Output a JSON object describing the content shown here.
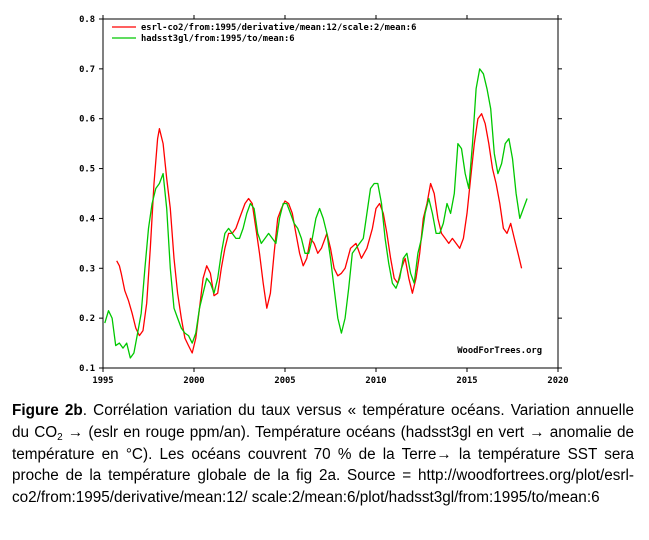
{
  "chart_data": {
    "type": "line",
    "title": "",
    "xlabel": "",
    "ylabel": "",
    "xlim": [
      1995,
      2020
    ],
    "ylim": [
      0.1,
      0.8
    ],
    "xticks": [
      1995,
      2000,
      2005,
      2010,
      2015,
      2020
    ],
    "yticks": [
      0.1,
      0.2,
      0.3,
      0.4,
      0.5,
      0.6,
      0.7,
      0.8
    ],
    "grid": false,
    "legend_position": "top-left",
    "watermark": "WoodForTrees.org",
    "series": [
      {
        "name": "esrl-co2/from:1995/derivative/mean:12/scale:2/mean:6",
        "color": "#ff0000",
        "points": [
          [
            1995.75,
            0.315
          ],
          [
            1995.9,
            0.305
          ],
          [
            1996.0,
            0.29
          ],
          [
            1996.2,
            0.255
          ],
          [
            1996.4,
            0.235
          ],
          [
            1996.6,
            0.21
          ],
          [
            1996.8,
            0.18
          ],
          [
            1997.0,
            0.165
          ],
          [
            1997.2,
            0.175
          ],
          [
            1997.4,
            0.23
          ],
          [
            1997.6,
            0.34
          ],
          [
            1997.8,
            0.47
          ],
          [
            1998.0,
            0.56
          ],
          [
            1998.1,
            0.58
          ],
          [
            1998.3,
            0.55
          ],
          [
            1998.5,
            0.48
          ],
          [
            1998.7,
            0.42
          ],
          [
            1998.9,
            0.32
          ],
          [
            1999.1,
            0.25
          ],
          [
            1999.3,
            0.2
          ],
          [
            1999.5,
            0.16
          ],
          [
            1999.7,
            0.145
          ],
          [
            1999.9,
            0.13
          ],
          [
            2000.1,
            0.16
          ],
          [
            2000.3,
            0.22
          ],
          [
            2000.5,
            0.28
          ],
          [
            2000.7,
            0.305
          ],
          [
            2000.9,
            0.29
          ],
          [
            2001.1,
            0.245
          ],
          [
            2001.3,
            0.25
          ],
          [
            2001.5,
            0.3
          ],
          [
            2001.7,
            0.34
          ],
          [
            2001.9,
            0.37
          ],
          [
            2002.1,
            0.37
          ],
          [
            2002.3,
            0.38
          ],
          [
            2002.5,
            0.4
          ],
          [
            2002.8,
            0.43
          ],
          [
            2003.0,
            0.44
          ],
          [
            2003.2,
            0.43
          ],
          [
            2003.4,
            0.38
          ],
          [
            2003.6,
            0.33
          ],
          [
            2003.8,
            0.27
          ],
          [
            2004.0,
            0.22
          ],
          [
            2004.2,
            0.25
          ],
          [
            2004.4,
            0.33
          ],
          [
            2004.6,
            0.4
          ],
          [
            2004.8,
            0.42
          ],
          [
            2005.0,
            0.435
          ],
          [
            2005.2,
            0.43
          ],
          [
            2005.4,
            0.41
          ],
          [
            2005.6,
            0.37
          ],
          [
            2005.8,
            0.33
          ],
          [
            2006.0,
            0.305
          ],
          [
            2006.2,
            0.32
          ],
          [
            2006.4,
            0.36
          ],
          [
            2006.6,
            0.35
          ],
          [
            2006.8,
            0.33
          ],
          [
            2007.0,
            0.34
          ],
          [
            2007.3,
            0.37
          ],
          [
            2007.5,
            0.34
          ],
          [
            2007.7,
            0.3
          ],
          [
            2007.9,
            0.285
          ],
          [
            2008.1,
            0.29
          ],
          [
            2008.3,
            0.3
          ],
          [
            2008.6,
            0.34
          ],
          [
            2008.9,
            0.35
          ],
          [
            2009.2,
            0.32
          ],
          [
            2009.5,
            0.34
          ],
          [
            2009.8,
            0.38
          ],
          [
            2010.0,
            0.42
          ],
          [
            2010.2,
            0.43
          ],
          [
            2010.4,
            0.41
          ],
          [
            2010.6,
            0.37
          ],
          [
            2010.8,
            0.32
          ],
          [
            2011.0,
            0.28
          ],
          [
            2011.2,
            0.27
          ],
          [
            2011.4,
            0.3
          ],
          [
            2011.6,
            0.32
          ],
          [
            2011.8,
            0.28
          ],
          [
            2012.0,
            0.25
          ],
          [
            2012.2,
            0.28
          ],
          [
            2012.4,
            0.33
          ],
          [
            2012.6,
            0.4
          ],
          [
            2012.8,
            0.43
          ],
          [
            2013.0,
            0.47
          ],
          [
            2013.2,
            0.45
          ],
          [
            2013.4,
            0.4
          ],
          [
            2013.6,
            0.37
          ],
          [
            2013.8,
            0.36
          ],
          [
            2014.0,
            0.35
          ],
          [
            2014.2,
            0.36
          ],
          [
            2014.4,
            0.35
          ],
          [
            2014.6,
            0.34
          ],
          [
            2014.8,
            0.36
          ],
          [
            2015.0,
            0.41
          ],
          [
            2015.2,
            0.48
          ],
          [
            2015.4,
            0.55
          ],
          [
            2015.6,
            0.6
          ],
          [
            2015.8,
            0.61
          ],
          [
            2016.0,
            0.59
          ],
          [
            2016.2,
            0.55
          ],
          [
            2016.4,
            0.5
          ],
          [
            2016.6,
            0.47
          ],
          [
            2016.8,
            0.43
          ],
          [
            2017.0,
            0.38
          ],
          [
            2017.2,
            0.37
          ],
          [
            2017.4,
            0.39
          ],
          [
            2017.6,
            0.36
          ],
          [
            2017.8,
            0.33
          ],
          [
            2018.0,
            0.3
          ]
        ]
      },
      {
        "name": "hadsst3gl/from:1995/to/mean:6",
        "color": "#00c800",
        "points": [
          [
            1995.1,
            0.19
          ],
          [
            1995.3,
            0.215
          ],
          [
            1995.5,
            0.2
          ],
          [
            1995.7,
            0.145
          ],
          [
            1995.9,
            0.15
          ],
          [
            1996.1,
            0.14
          ],
          [
            1996.3,
            0.15
          ],
          [
            1996.5,
            0.12
          ],
          [
            1996.7,
            0.13
          ],
          [
            1996.9,
            0.17
          ],
          [
            1997.1,
            0.21
          ],
          [
            1997.3,
            0.3
          ],
          [
            1997.5,
            0.38
          ],
          [
            1997.7,
            0.43
          ],
          [
            1997.9,
            0.46
          ],
          [
            1998.1,
            0.47
          ],
          [
            1998.3,
            0.49
          ],
          [
            1998.5,
            0.42
          ],
          [
            1998.7,
            0.3
          ],
          [
            1998.9,
            0.22
          ],
          [
            1999.1,
            0.2
          ],
          [
            1999.3,
            0.18
          ],
          [
            1999.5,
            0.17
          ],
          [
            1999.7,
            0.165
          ],
          [
            1999.9,
            0.15
          ],
          [
            2000.1,
            0.17
          ],
          [
            2000.3,
            0.22
          ],
          [
            2000.5,
            0.25
          ],
          [
            2000.7,
            0.28
          ],
          [
            2000.9,
            0.27
          ],
          [
            2001.1,
            0.25
          ],
          [
            2001.3,
            0.28
          ],
          [
            2001.5,
            0.33
          ],
          [
            2001.7,
            0.37
          ],
          [
            2001.9,
            0.38
          ],
          [
            2002.1,
            0.37
          ],
          [
            2002.3,
            0.36
          ],
          [
            2002.5,
            0.36
          ],
          [
            2002.7,
            0.38
          ],
          [
            2002.9,
            0.41
          ],
          [
            2003.1,
            0.43
          ],
          [
            2003.3,
            0.42
          ],
          [
            2003.5,
            0.37
          ],
          [
            2003.7,
            0.35
          ],
          [
            2003.9,
            0.36
          ],
          [
            2004.1,
            0.37
          ],
          [
            2004.3,
            0.36
          ],
          [
            2004.5,
            0.35
          ],
          [
            2004.7,
            0.4
          ],
          [
            2004.9,
            0.43
          ],
          [
            2005.1,
            0.43
          ],
          [
            2005.3,
            0.41
          ],
          [
            2005.5,
            0.39
          ],
          [
            2005.7,
            0.38
          ],
          [
            2005.9,
            0.36
          ],
          [
            2006.1,
            0.33
          ],
          [
            2006.3,
            0.33
          ],
          [
            2006.5,
            0.36
          ],
          [
            2006.7,
            0.4
          ],
          [
            2006.9,
            0.42
          ],
          [
            2007.1,
            0.4
          ],
          [
            2007.3,
            0.37
          ],
          [
            2007.5,
            0.32
          ],
          [
            2007.7,
            0.26
          ],
          [
            2007.9,
            0.2
          ],
          [
            2008.1,
            0.17
          ],
          [
            2008.3,
            0.2
          ],
          [
            2008.5,
            0.26
          ],
          [
            2008.7,
            0.33
          ],
          [
            2008.9,
            0.34
          ],
          [
            2009.1,
            0.35
          ],
          [
            2009.3,
            0.36
          ],
          [
            2009.5,
            0.41
          ],
          [
            2009.7,
            0.46
          ],
          [
            2009.9,
            0.47
          ],
          [
            2010.1,
            0.47
          ],
          [
            2010.3,
            0.43
          ],
          [
            2010.5,
            0.36
          ],
          [
            2010.7,
            0.31
          ],
          [
            2010.9,
            0.27
          ],
          [
            2011.1,
            0.26
          ],
          [
            2011.3,
            0.28
          ],
          [
            2011.5,
            0.32
          ],
          [
            2011.7,
            0.33
          ],
          [
            2011.9,
            0.29
          ],
          [
            2012.1,
            0.27
          ],
          [
            2012.3,
            0.33
          ],
          [
            2012.5,
            0.36
          ],
          [
            2012.7,
            0.41
          ],
          [
            2012.9,
            0.44
          ],
          [
            2013.1,
            0.41
          ],
          [
            2013.3,
            0.37
          ],
          [
            2013.5,
            0.37
          ],
          [
            2013.7,
            0.39
          ],
          [
            2013.9,
            0.43
          ],
          [
            2014.1,
            0.41
          ],
          [
            2014.3,
            0.45
          ],
          [
            2014.5,
            0.55
          ],
          [
            2014.7,
            0.54
          ],
          [
            2014.9,
            0.49
          ],
          [
            2015.1,
            0.46
          ],
          [
            2015.3,
            0.55
          ],
          [
            2015.5,
            0.66
          ],
          [
            2015.7,
            0.7
          ],
          [
            2015.9,
            0.69
          ],
          [
            2016.1,
            0.66
          ],
          [
            2016.3,
            0.62
          ],
          [
            2016.5,
            0.53
          ],
          [
            2016.7,
            0.49
          ],
          [
            2016.9,
            0.51
          ],
          [
            2017.1,
            0.55
          ],
          [
            2017.3,
            0.56
          ],
          [
            2017.5,
            0.52
          ],
          [
            2017.7,
            0.45
          ],
          [
            2017.9,
            0.4
          ],
          [
            2018.1,
            0.42
          ],
          [
            2018.3,
            0.44
          ]
        ]
      }
    ]
  },
  "caption": {
    "figure_label": "Figure 2b",
    "text_1": ". Corrélation variation du taux versus « température océans. Variation annuelle du CO",
    "sub": "2",
    "text_2": "  →  (eslr en rouge  ppm/an). Température océans (hadsst3gl en vert → anomalie de température en °C). Les océans couvrent  70 % de la Terre→ la température SST sera  proche de la température globale de la fig 2a. Source = http://woodfortrees.org/plot/esrl-co2/from:1995/derivative/mean:12/ scale:2/mean:6/plot/hadsst3gl/from:1995/to/mean:6"
  },
  "colors": {
    "axis": "#000000",
    "red_series": "#ff0000",
    "green_series": "#00c800"
  }
}
